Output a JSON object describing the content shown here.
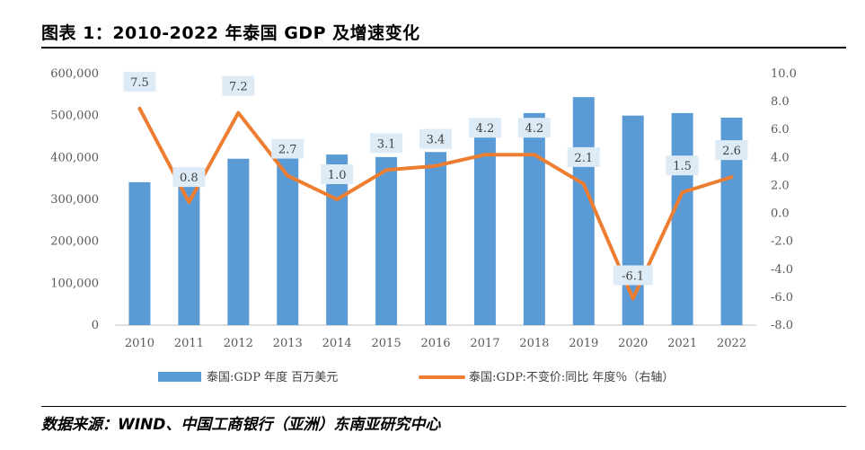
{
  "header": {
    "title": "图表 1：2010-2022 年泰国 GDP 及增速变化"
  },
  "footer": {
    "source": "数据来源：WIND、中国工商银行（亚洲）东南亚研究中心"
  },
  "chart_data": {
    "type": "bar+line",
    "categories": [
      "2010",
      "2011",
      "2012",
      "2013",
      "2014",
      "2015",
      "2016",
      "2017",
      "2018",
      "2019",
      "2020",
      "2021",
      "2022"
    ],
    "series": [
      {
        "name": "泰国:GDP 年度 百万美元",
        "type": "bar",
        "axis": "left",
        "color": "#5B9BD5",
        "values": [
          341000,
          371000,
          397000,
          420000,
          407000,
          401000,
          413000,
          456000,
          506000,
          544000,
          500000,
          506000,
          495000
        ]
      },
      {
        "name": "泰国:GDP:不变价:同比 年度％（右轴）",
        "type": "line",
        "axis": "right",
        "color": "#ED7D31",
        "values": [
          7.5,
          0.8,
          7.2,
          2.7,
          1.0,
          3.1,
          3.4,
          4.2,
          4.2,
          2.1,
          -6.1,
          1.5,
          2.6
        ]
      }
    ],
    "data_labels": [
      "7.5",
      "0.8",
      "7.2",
      "2.7",
      "1.0",
      "3.1",
      "3.4",
      "4.2",
      "4.2",
      "2.1",
      "-6.1",
      "1.5",
      "2.6"
    ],
    "left_axis": {
      "min": 0,
      "max": 600000,
      "ticks": [
        "0",
        "100,000",
        "200,000",
        "300,000",
        "400,000",
        "500,000",
        "600,000"
      ]
    },
    "right_axis": {
      "min": -8,
      "max": 10,
      "ticks": [
        "-8.0",
        "-6.0",
        "-4.0",
        "-2.0",
        "0.0",
        "2.0",
        "4.0",
        "6.0",
        "8.0",
        "10.0"
      ]
    },
    "grid": false,
    "legend_position": "bottom"
  }
}
